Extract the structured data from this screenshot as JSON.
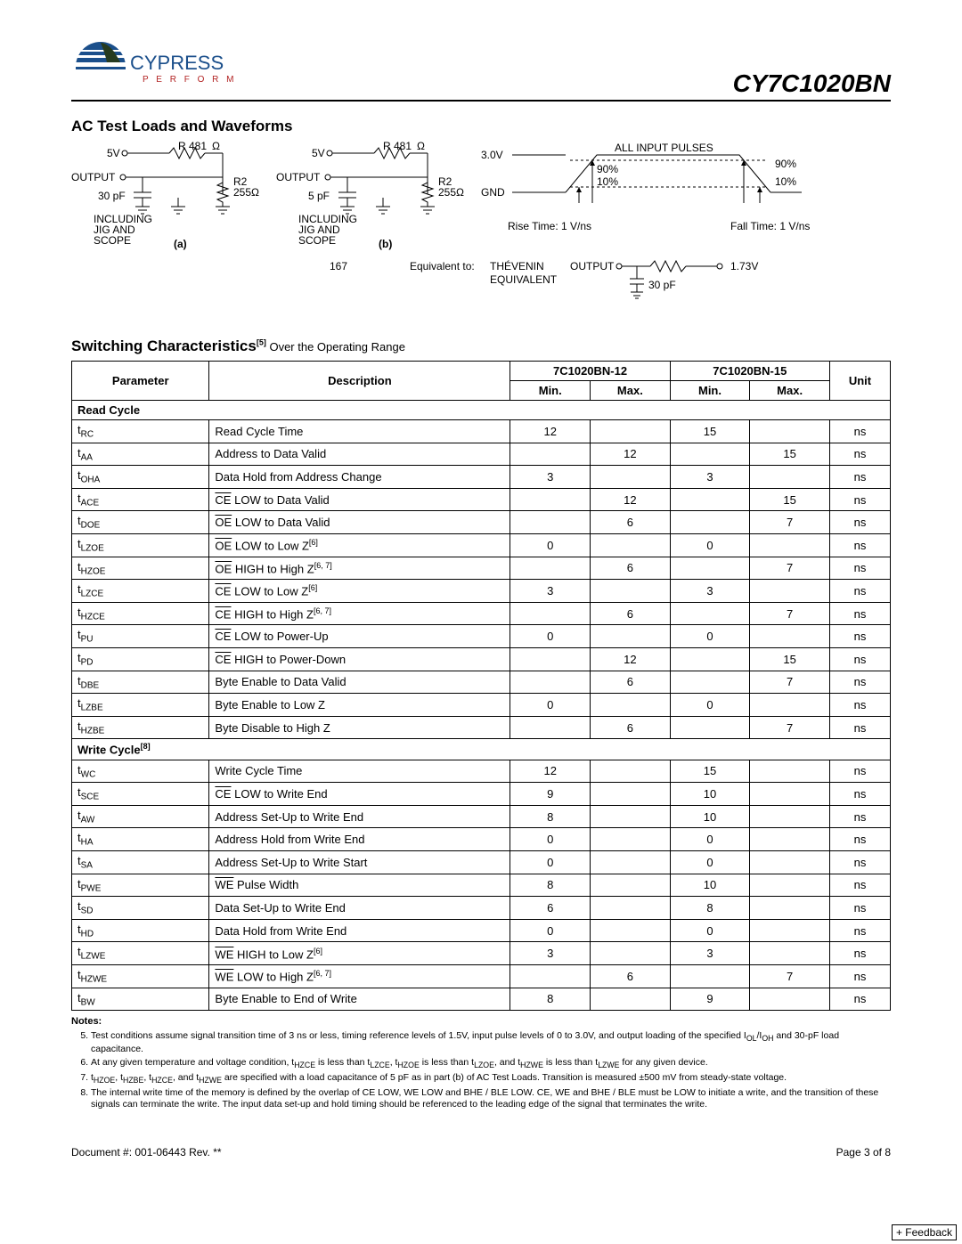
{
  "header": {
    "company": "CYPRESS",
    "tagline": "P E R F O R M",
    "part": "CY7C1020BN"
  },
  "section1": {
    "title": "AC Test Loads and Waveforms"
  },
  "figure": {
    "r_label": "R 481",
    "ohm": "Ω",
    "five_v": "5V",
    "output": "OUTPUT",
    "cap_a": "30 pF",
    "cap_b": "5 pF",
    "r2": "R2",
    "r2_val": "255Ω",
    "jig": "INCLUDING\nJIG AND\nSCOPE",
    "label_a": "(a)",
    "label_b": "(b)",
    "num167": "167",
    "three_v": "3.0V",
    "gnd": "GND",
    "ninety": "90%",
    "ten": "10%",
    "pulses": "ALL INPUT PULSES",
    "rise": "Rise Time: 1 V/ns",
    "fall": "Fall Time: 1 V/ns",
    "equiv_to": "Equivalent  to:",
    "thevenin": "THÉVENIN\nEQUIVALENT",
    "out2": "OUTPUT",
    "v173": "1.73V",
    "cap30": "30 pF"
  },
  "section2": {
    "title": "Switching Characteristics",
    "sup": "[5]",
    "subtitle": " Over the Operating Range"
  },
  "table": {
    "col_param": "Parameter",
    "col_desc": "Description",
    "dev1": "7C1020BN-12",
    "dev2": "7C1020BN-15",
    "min": "Min.",
    "max": "Max.",
    "unit": "Unit",
    "read_cycle": "Read Cycle",
    "write_cycle": "Write Cycle",
    "write_sup": "[8]",
    "rows": [
      {
        "p": "t<sub>RC</sub>",
        "d": "Read Cycle Time",
        "min1": "12",
        "max1": "",
        "min2": "15",
        "max2": "",
        "u": "ns"
      },
      {
        "p": "t<sub>AA</sub>",
        "d": "Address to Data Valid",
        "min1": "",
        "max1": "12",
        "min2": "",
        "max2": "15",
        "u": "ns"
      },
      {
        "p": "t<sub>OHA</sub>",
        "d": "Data Hold from Address Change",
        "min1": "3",
        "max1": "",
        "min2": "3",
        "max2": "",
        "u": "ns"
      },
      {
        "p": "t<sub>ACE</sub>",
        "d": "<span class='ovl'>CE</span> LOW to Data Valid",
        "min1": "",
        "max1": "12",
        "min2": "",
        "max2": "15",
        "u": "ns"
      },
      {
        "p": "t<sub>DOE</sub>",
        "d": "<span class='ovl'>OE</span> LOW to Data Valid",
        "min1": "",
        "max1": "6",
        "min2": "",
        "max2": "7",
        "u": "ns"
      },
      {
        "p": "t<sub>LZOE</sub>",
        "d": "<span class='ovl'>OE</span> LOW to Low Z<sup>[6]</sup>",
        "min1": "0",
        "max1": "",
        "min2": "0",
        "max2": "",
        "u": "ns"
      },
      {
        "p": "t<sub>HZOE</sub>",
        "d": "<span class='ovl'>OE</span> HIGH to High Z<sup>[6, 7]</sup>",
        "min1": "",
        "max1": "6",
        "min2": "",
        "max2": "7",
        "u": "ns"
      },
      {
        "p": "t<sub>LZCE</sub>",
        "d": "<span class='ovl'>CE</span> LOW to Low Z<sup>[6]</sup>",
        "min1": "3",
        "max1": "",
        "min2": "3",
        "max2": "",
        "u": "ns"
      },
      {
        "p": "t<sub>HZCE</sub>",
        "d": "<span class='ovl'>CE</span> HIGH to High Z<sup>[6, 7]</sup>",
        "min1": "",
        "max1": "6",
        "min2": "",
        "max2": "7",
        "u": "ns"
      },
      {
        "p": "t<sub>PU</sub>",
        "d": "<span class='ovl'>CE</span> LOW to Power-Up",
        "min1": "0",
        "max1": "",
        "min2": "0",
        "max2": "",
        "u": "ns"
      },
      {
        "p": "t<sub>PD</sub>",
        "d": "<span class='ovl'>CE</span> HIGH to Power-Down",
        "min1": "",
        "max1": "12",
        "min2": "",
        "max2": "15",
        "u": "ns"
      },
      {
        "p": "t<sub>DBE</sub>",
        "d": "Byte Enable to Data Valid",
        "min1": "",
        "max1": "6",
        "min2": "",
        "max2": "7",
        "u": "ns"
      },
      {
        "p": "t<sub>LZBE</sub>",
        "d": "Byte Enable to Low Z",
        "min1": "0",
        "max1": "",
        "min2": "0",
        "max2": "",
        "u": "ns"
      },
      {
        "p": "t<sub>HZBE</sub>",
        "d": "Byte Disable to High Z",
        "min1": "",
        "max1": "6",
        "min2": "",
        "max2": "7",
        "u": "ns"
      }
    ],
    "wrows": [
      {
        "p": "t<sub>WC</sub>",
        "d": "Write Cycle Time",
        "min1": "12",
        "max1": "",
        "min2": "15",
        "max2": "",
        "u": "ns"
      },
      {
        "p": "t<sub>SCE</sub>",
        "d": "<span class='ovl'>CE</span> LOW to Write End",
        "min1": "9",
        "max1": "",
        "min2": "10",
        "max2": "",
        "u": "ns"
      },
      {
        "p": "t<sub>AW</sub>",
        "d": "Address Set-Up to Write End",
        "min1": "8",
        "max1": "",
        "min2": "10",
        "max2": "",
        "u": "ns"
      },
      {
        "p": "t<sub>HA</sub>",
        "d": "Address Hold from Write End",
        "min1": "0",
        "max1": "",
        "min2": "0",
        "max2": "",
        "u": "ns"
      },
      {
        "p": "t<sub>SA</sub>",
        "d": "Address Set-Up to Write Start",
        "min1": "0",
        "max1": "",
        "min2": "0",
        "max2": "",
        "u": "ns"
      },
      {
        "p": "t<sub>PWE</sub>",
        "d": "<span class='ovl'>WE</span> Pulse Width",
        "min1": "8",
        "max1": "",
        "min2": "10",
        "max2": "",
        "u": "ns"
      },
      {
        "p": "t<sub>SD</sub>",
        "d": "Data Set-Up to Write End",
        "min1": "6",
        "max1": "",
        "min2": "8",
        "max2": "",
        "u": "ns"
      },
      {
        "p": "t<sub>HD</sub>",
        "d": "Data Hold from Write End",
        "min1": "0",
        "max1": "",
        "min2": "0",
        "max2": "",
        "u": "ns"
      },
      {
        "p": "t<sub>LZWE</sub>",
        "d": "<span class='ovl'>WE</span> HIGH to Low Z<sup>[6]</sup>",
        "min1": "3",
        "max1": "",
        "min2": "3",
        "max2": "",
        "u": "ns"
      },
      {
        "p": "t<sub>HZWE</sub>",
        "d": "<span class='ovl'>WE</span> LOW to High Z<sup>[6, 7]</sup>",
        "min1": "",
        "max1": "6",
        "min2": "",
        "max2": "7",
        "u": "ns"
      },
      {
        "p": "t<sub>BW</sub>",
        "d": "Byte Enable to End of Write",
        "min1": "8",
        "max1": "",
        "min2": "9",
        "max2": "",
        "u": "ns"
      }
    ]
  },
  "notes": {
    "title": "Notes:",
    "items": [
      "Test conditions assume signal transition time of 3 ns or less, timing reference levels of 1.5V, input pulse levels of 0 to 3.0V, and output loading of the specified I<sub>OL</sub>/I<sub>OH</sub> and 30-pF load capacitance.",
      "At any given temperature and voltage condition, t<sub>HZCE</sub> is less than t<sub>LZCE</sub>, t<sub>HZOE</sub> is less than t<sub>LZOE</sub>, and t<sub>HZWE</sub> is less than t<sub>LZWE</sub> for any given device.",
      "t<sub>HZOE</sub>, t<sub>HZBE</sub>, t<sub>HZCE</sub>, and t<sub>HZWE</sub> are specified with a load capacitance of 5 pF as in part (b) of AC Test Loads. Transition is measured ±500 mV from steady-state voltage.",
      "The internal write time of the memory is defined by the overlap of <span class='ovl'>CE</span> LOW, <span class='ovl'>WE</span> LOW and <span class='ovl'>BHE</span> / <span class='ovl'>BLE</span> LOW. <span class='ovl'>CE</span>, <span class='ovl'>WE</span> and <span class='ovl'>BHE</span> / <span class='ovl'>BLE</span> must be LOW to initiate a write, and the transition of these signals can terminate the write. The input data set-up and hold timing should be referenced to the leading edge of the signal that terminates the write."
    ]
  },
  "footer": {
    "doc": "Document #: 001-06443  Rev. **",
    "page": "Page 3 of 8",
    "feedback": "+ Feedback"
  }
}
